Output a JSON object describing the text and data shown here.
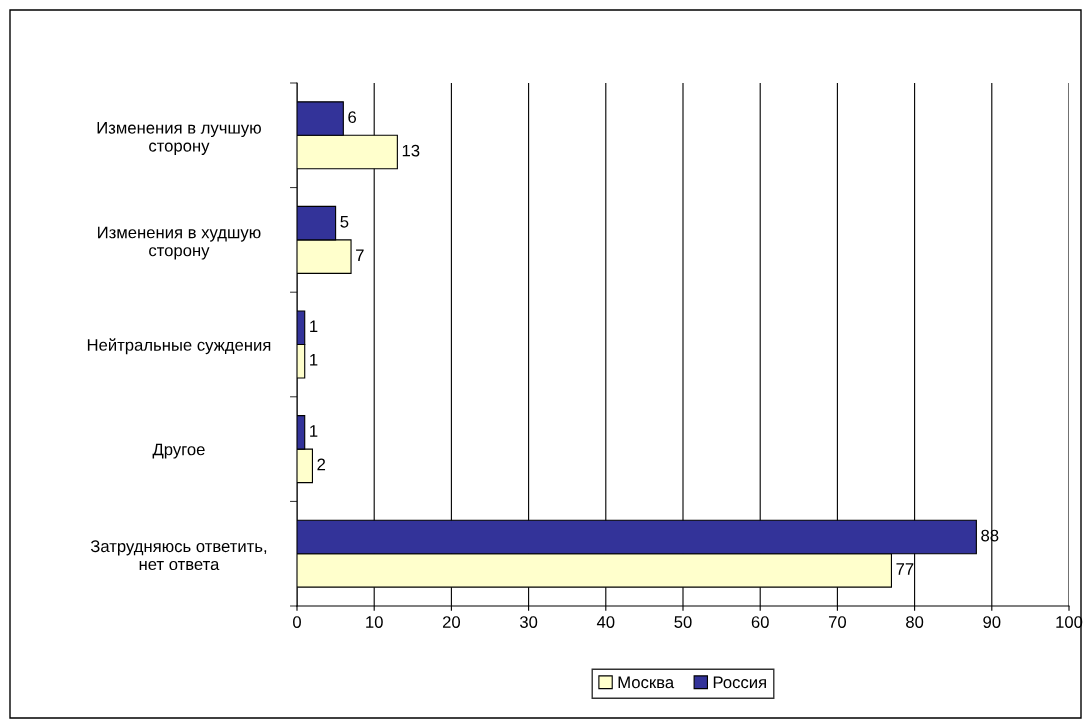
{
  "chart_data": {
    "type": "bar",
    "orientation": "horizontal",
    "categories": [
      "Изменения в лучшую\nсторону",
      "Изменения в худшую\nсторону",
      "Нейтральные суждения",
      "Другое",
      "Затрудняюсь ответить,\nнет ответа"
    ],
    "series": [
      {
        "name": "Москва",
        "color": "#ffffcc",
        "values": [
          13,
          7,
          1,
          2,
          77
        ]
      },
      {
        "name": "Россия",
        "color": "#333399",
        "values": [
          6,
          5,
          1,
          1,
          88
        ]
      }
    ],
    "xlim": [
      0,
      100
    ],
    "xticks": [
      0,
      10,
      20,
      30,
      40,
      50,
      60,
      70,
      80,
      90,
      100
    ],
    "grid": "x",
    "legend": "bottom",
    "data_labels": true
  }
}
